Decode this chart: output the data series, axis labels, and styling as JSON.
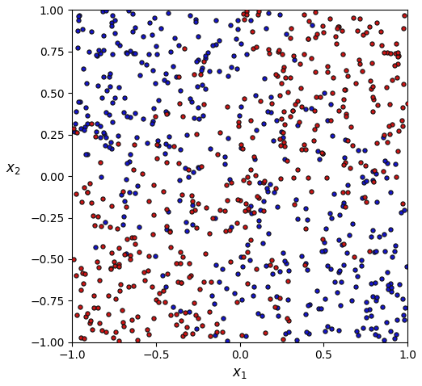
{
  "seed": 42,
  "n_points": 800,
  "xlim": [
    -1.0,
    1.0
  ],
  "ylim": [
    -1.0,
    1.0
  ],
  "xlabel": "$x_1$",
  "ylabel": "$x_2$",
  "color_class0": "#1515CC",
  "color_class1": "#CC1515",
  "marker_size": 14,
  "edge_color": "#111111",
  "edge_width": 0.8,
  "xticks": [
    -1.0,
    -0.5,
    0.0,
    0.5,
    1.0
  ],
  "yticks": [
    -1.0,
    -0.75,
    -0.5,
    -0.25,
    0.0,
    0.25,
    0.5,
    0.75,
    1.0
  ],
  "figsize": [
    5.22,
    4.78
  ],
  "dpi": 100
}
